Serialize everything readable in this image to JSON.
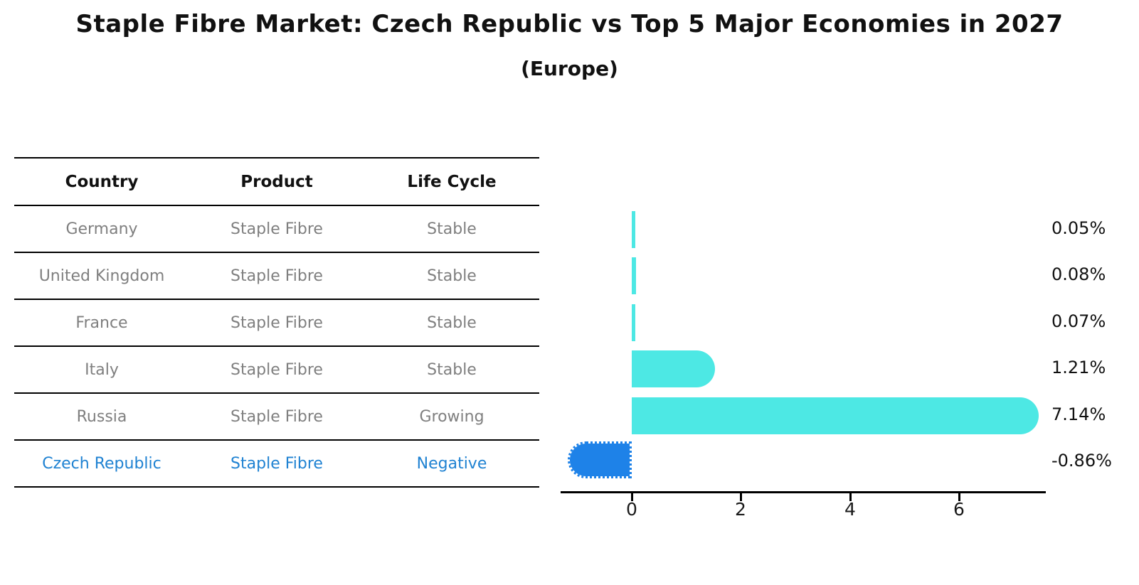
{
  "title": "Staple Fibre Market: Czech Republic vs Top 5 Major Economies in 2027",
  "subtitle": "(Europe)",
  "table": {
    "headers": [
      "Country",
      "Product",
      "Life Cycle"
    ],
    "rows": [
      {
        "country": "Germany",
        "product": "Staple Fibre",
        "life_cycle": "Stable",
        "highlight": false
      },
      {
        "country": "United Kingdom",
        "product": "Staple Fibre",
        "life_cycle": "Stable",
        "highlight": false
      },
      {
        "country": "France",
        "product": "Staple Fibre",
        "life_cycle": "Stable",
        "highlight": false
      },
      {
        "country": "Italy",
        "product": "Staple Fibre",
        "life_cycle": "Stable",
        "highlight": false
      },
      {
        "country": "Russia",
        "product": "Staple Fibre",
        "life_cycle": "Growing",
        "highlight": false
      },
      {
        "country": "Czech Republic",
        "product": "Staple Fibre",
        "life_cycle": "Negative",
        "highlight": true
      }
    ]
  },
  "chart_data": {
    "type": "bar",
    "orientation": "horizontal",
    "categories": [
      "Germany",
      "United Kingdom",
      "France",
      "Italy",
      "Russia",
      "Czech Republic"
    ],
    "values": [
      0.05,
      0.08,
      0.07,
      1.21,
      7.14,
      -0.86
    ],
    "value_labels": [
      "0.05%",
      "0.08%",
      "0.07%",
      "1.21%",
      "7.14%",
      "-0.86%"
    ],
    "x_ticks": [
      0,
      2,
      4,
      6
    ],
    "xlim": [
      -1.32,
      7.6
    ],
    "grid": false,
    "legend": false,
    "bar_color_positive": "#4de8e4",
    "bar_color_negative": "#1e82e8",
    "highlight_text_color": "#1f82d2",
    "axis_color": "#000000"
  }
}
